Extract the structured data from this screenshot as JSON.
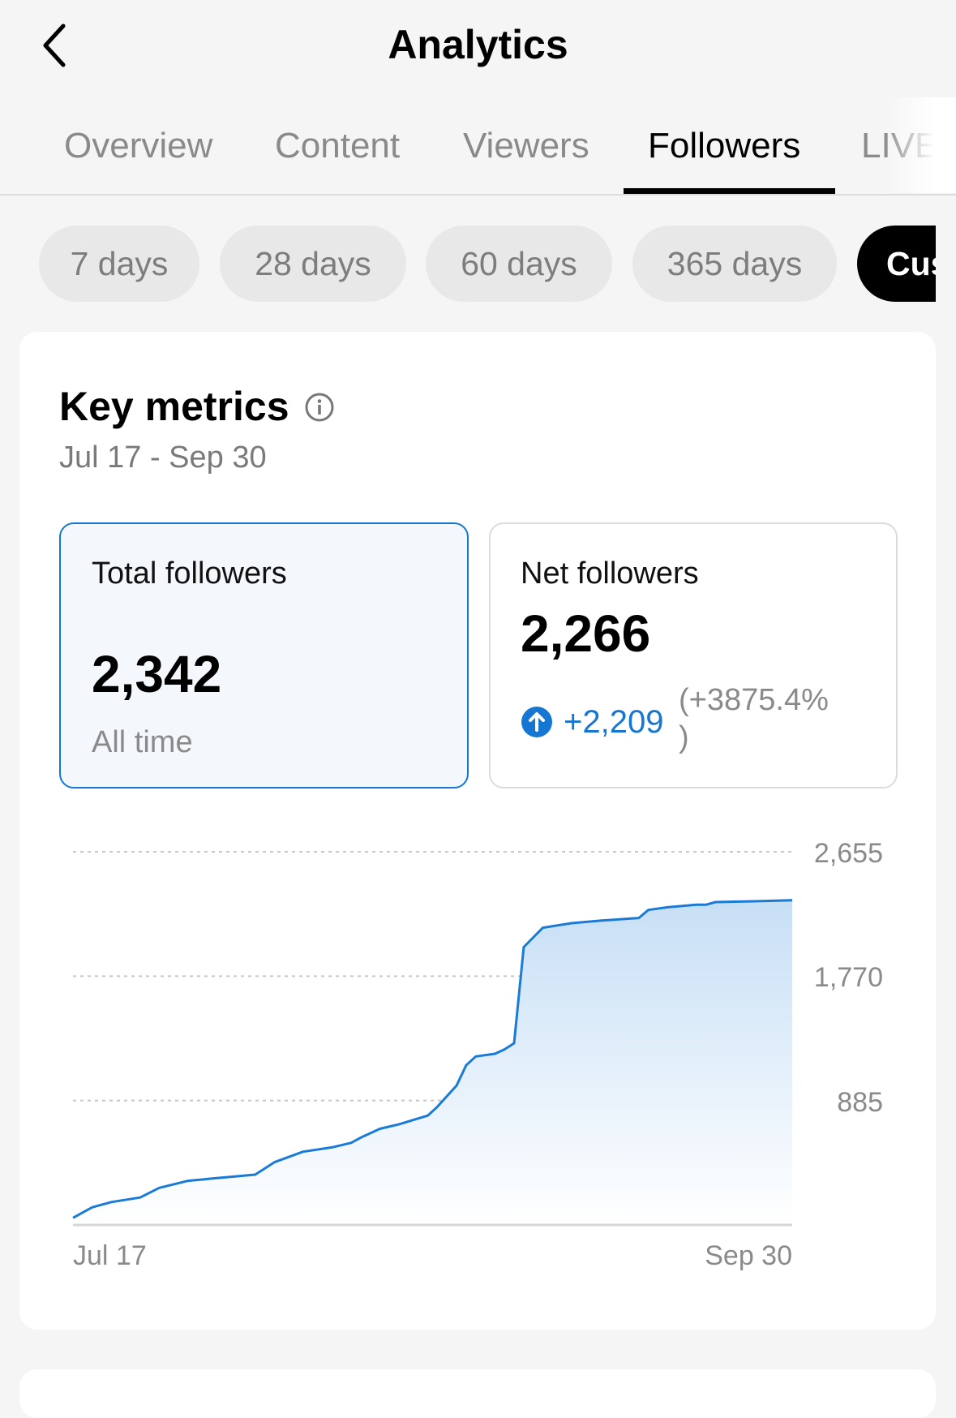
{
  "header": {
    "title": "Analytics",
    "back_icon": "chevron-left-icon"
  },
  "tabs": [
    {
      "label": "Overview",
      "active": false
    },
    {
      "label": "Content",
      "active": false
    },
    {
      "label": "Viewers",
      "active": false
    },
    {
      "label": "Followers",
      "active": true
    },
    {
      "label": "LIVE",
      "active": false
    }
  ],
  "ranges": [
    {
      "label": "7 days",
      "active": false
    },
    {
      "label": "28 days",
      "active": false
    },
    {
      "label": "60 days",
      "active": false
    },
    {
      "label": "365 days",
      "active": false
    },
    {
      "label": "Cus",
      "active": true
    }
  ],
  "key_metrics": {
    "title": "Key metrics",
    "info_icon": "info-icon",
    "date_range": "Jul 17 - Sep 30",
    "total": {
      "label": "Total followers",
      "value": "2,342",
      "sub": "All time"
    },
    "net": {
      "label": "Net followers",
      "value": "2,266",
      "change": "+2,209",
      "change_pct": "(+3875.4%",
      "change_pct_close": ")",
      "change_icon": "arrow-up-circle-icon"
    }
  },
  "colors": {
    "accent": "#1677d2",
    "line": "#1a7bd6"
  },
  "chart_data": {
    "type": "area",
    "y_ticks": [
      "2,655",
      "1,770",
      "885"
    ],
    "ylim": [
      0,
      2655
    ],
    "x_tick_labels": [
      "Jul 17",
      "Sep 30"
    ],
    "grid": true,
    "points": [
      [
        "Jul 17",
        50
      ],
      [
        "Jul 18",
        88
      ],
      [
        "Jul 19",
        125
      ],
      [
        "Jul 21",
        163
      ],
      [
        "Jul 24",
        195
      ],
      [
        "Jul 26",
        264
      ],
      [
        "Jul 29",
        314
      ],
      [
        "Aug 1",
        333
      ],
      [
        "Aug 5",
        358
      ],
      [
        "Aug 7",
        446
      ],
      [
        "Aug 10",
        521
      ],
      [
        "Aug 13",
        552
      ],
      [
        "Aug 15",
        584
      ],
      [
        "Aug 16",
        621
      ],
      [
        "Aug 18",
        684
      ],
      [
        "Aug 20",
        716
      ],
      [
        "Aug 23",
        778
      ],
      [
        "Aug 24",
        841
      ],
      [
        "Aug 26",
        992
      ],
      [
        "Aug 27",
        1136
      ],
      [
        "Aug 28",
        1199
      ],
      [
        "Aug 30",
        1218
      ],
      [
        "Aug 31",
        1249
      ],
      [
        "Sep 1",
        1293
      ],
      [
        "Sep 2",
        1977
      ],
      [
        "Sep 3",
        2046
      ],
      [
        "Sep 4",
        2115
      ],
      [
        "Sep 7",
        2147
      ],
      [
        "Sep 10",
        2165
      ],
      [
        "Sep 14",
        2184
      ],
      [
        "Sep 15",
        2241
      ],
      [
        "Sep 17",
        2260
      ],
      [
        "Sep 20",
        2278
      ],
      [
        "Sep 21",
        2278
      ],
      [
        "Sep 22",
        2297
      ],
      [
        "Sep 26",
        2303
      ],
      [
        "Sep 30",
        2310
      ]
    ]
  }
}
